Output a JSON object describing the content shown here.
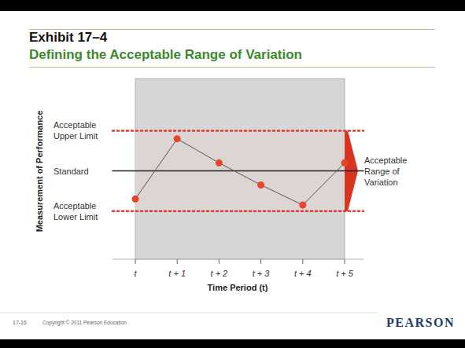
{
  "chart_data": {
    "type": "line",
    "title": "Exhibit 17–4",
    "subtitle": "Defining the Acceptable Range of Variation",
    "x_label": "Time Period (t)",
    "y_label": "Measurement of Performance",
    "categories": [
      "t",
      "t + 1",
      "t + 2",
      "t + 3",
      "t + 4",
      "t + 5"
    ],
    "values": [
      36,
      66,
      54,
      43,
      33,
      54
    ],
    "color": "#e8462a",
    "marker": "circle",
    "ylim": [
      6,
      96
    ],
    "yticks": [],
    "tick_labels": "x",
    "reference_lines": [
      {
        "label": "Acceptable Upper Limit",
        "value": 70,
        "color": "#e0392a",
        "line_style": "dotted"
      },
      {
        "label": "Standard",
        "value": 50,
        "color": "#222222",
        "line_style": "solid"
      },
      {
        "label": "Acceptable Lower Limit",
        "value": 30,
        "color": "#e0392a",
        "line_style": "dotted"
      }
    ],
    "range_label": "Acceptable Range of Variation"
  },
  "footer": {
    "page": "17-16",
    "copyright": "Copyright © 2011 Pearson Education",
    "logo": "PEARSON"
  }
}
